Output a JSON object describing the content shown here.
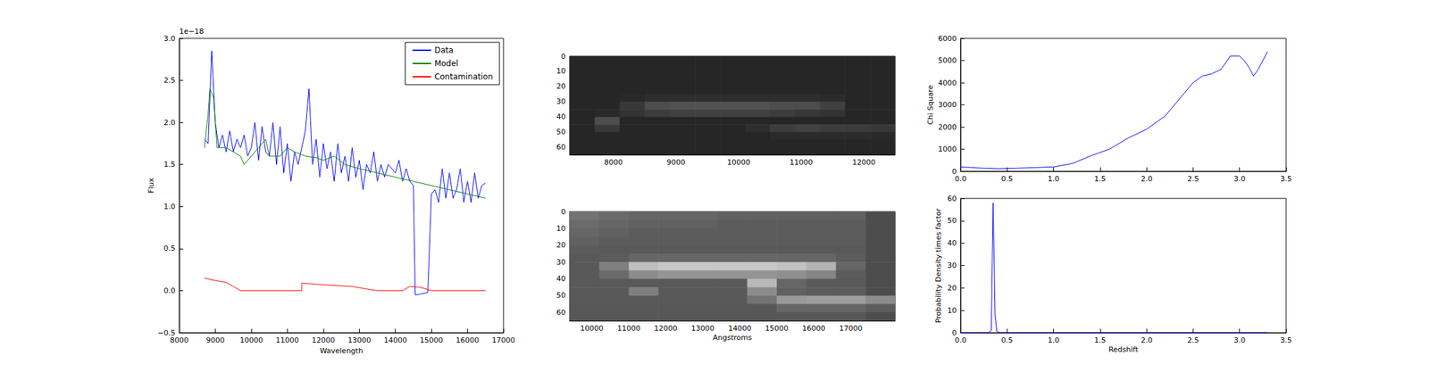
{
  "chart_data": [
    {
      "type": "line",
      "xlabel": "Wavelength",
      "ylabel": "Flux",
      "annotation": "1e−18",
      "xlim": [
        8000,
        17000
      ],
      "xticks": [
        8000,
        9000,
        10000,
        11000,
        12000,
        13000,
        14000,
        15000,
        16000,
        17000
      ],
      "ylim": [
        -0.5,
        3.0
      ],
      "yticks": [
        {
          "value": -0.5,
          "label": "−0.5"
        },
        {
          "value": 0,
          "label": "0.0"
        },
        {
          "value": 0.5,
          "label": "0.5"
        },
        {
          "value": 1,
          "label": "1.0"
        },
        {
          "value": 1.5,
          "label": "1.5"
        },
        {
          "value": 2,
          "label": "2.0"
        },
        {
          "value": 2.5,
          "label": "2.5"
        },
        {
          "value": 3,
          "label": "3.0"
        }
      ],
      "legend": "upper right",
      "series": [
        {
          "name": "Data",
          "color": "#0000ff",
          "x": [
            8700,
            8800,
            8900,
            9000,
            9100,
            9200,
            9300,
            9400,
            9500,
            9600,
            9700,
            9800,
            9900,
            10000,
            10100,
            10200,
            10300,
            10400,
            10500,
            10600,
            10700,
            10800,
            10900,
            11000,
            11100,
            11200,
            11300,
            11400,
            11500,
            11600,
            11700,
            11800,
            11900,
            12000,
            12100,
            12200,
            12300,
            12400,
            12500,
            12600,
            12700,
            12800,
            12900,
            13000,
            13100,
            13200,
            13300,
            13400,
            13500,
            13600,
            13700,
            13800,
            13900,
            14000,
            14100,
            14200,
            14300,
            14400,
            14500,
            14550,
            14700,
            14900,
            15000,
            15100,
            15200,
            15300,
            15400,
            15500,
            15600,
            15700,
            15800,
            15900,
            16000,
            16100,
            16200,
            16300,
            16400,
            16500
          ],
          "values": [
            1.8,
            1.75,
            2.85,
            2.0,
            1.7,
            1.85,
            1.65,
            1.9,
            1.65,
            1.8,
            1.7,
            1.85,
            1.6,
            1.7,
            2.0,
            1.55,
            1.95,
            1.65,
            1.6,
            2.0,
            1.5,
            1.95,
            1.4,
            1.75,
            1.3,
            1.65,
            1.5,
            1.7,
            1.9,
            2.4,
            1.5,
            1.8,
            1.35,
            1.75,
            1.45,
            1.65,
            1.3,
            1.75,
            1.4,
            1.6,
            1.3,
            1.7,
            1.35,
            1.55,
            1.2,
            1.5,
            1.4,
            1.65,
            1.3,
            1.5,
            1.35,
            1.5,
            1.45,
            1.4,
            1.55,
            1.3,
            1.45,
            1.3,
            1.25,
            -0.05,
            -0.04,
            -0.02,
            1.15,
            1.2,
            1.05,
            1.45,
            1.1,
            1.4,
            1.1,
            1.2,
            1.45,
            1.05,
            1.3,
            1.05,
            1.4,
            1.1,
            1.25,
            1.28
          ]
        },
        {
          "name": "Model",
          "color": "#008000",
          "x": [
            8700,
            8800,
            8850,
            8950,
            9050,
            9300,
            9500,
            9700,
            9800,
            10000,
            10200,
            10400,
            10500,
            10800,
            11000,
            11200,
            11500,
            11800,
            12000,
            12300,
            12600,
            13000,
            13500,
            14000,
            14500,
            15000,
            15500,
            16000,
            16500
          ],
          "values": [
            1.7,
            2.1,
            2.4,
            2.3,
            1.7,
            1.7,
            1.65,
            1.6,
            1.5,
            1.6,
            1.7,
            1.8,
            1.6,
            1.6,
            1.7,
            1.65,
            1.6,
            1.58,
            1.55,
            1.6,
            1.5,
            1.45,
            1.4,
            1.35,
            1.3,
            1.25,
            1.2,
            1.15,
            1.1
          ]
        },
        {
          "name": "Contamination",
          "color": "#ff0000",
          "x": [
            8700,
            9000,
            9300,
            9500,
            9700,
            11400,
            11400,
            12000,
            12800,
            13200,
            13500,
            14200,
            14400,
            14700,
            15000,
            16500
          ],
          "values": [
            0.15,
            0.12,
            0.1,
            0.05,
            0.0,
            0.0,
            0.09,
            0.07,
            0.05,
            0.02,
            0.0,
            0.0,
            0.05,
            0.04,
            0.0,
            0.0
          ]
        }
      ]
    },
    {
      "type": "image",
      "xlim": [
        7300,
        12500
      ],
      "xticks": [
        8000,
        9000,
        10000,
        11000,
        12000
      ],
      "ylim": [
        0,
        65
      ],
      "yticks": [
        0,
        10,
        20,
        30,
        40,
        50,
        60
      ],
      "x_edges": [
        7300,
        7700,
        8100,
        8500,
        8900,
        9300,
        9700,
        10100,
        10500,
        10900,
        11300,
        11700,
        12100,
        12500
      ],
      "y_edges": [
        0,
        5,
        10,
        15,
        20,
        25,
        30,
        35,
        40,
        45,
        50,
        55,
        60,
        65
      ],
      "cells": [
        [
          15,
          15,
          15,
          15,
          15,
          15,
          15,
          15,
          15,
          15,
          15,
          15,
          15
        ],
        [
          15,
          15,
          15,
          15,
          15,
          15,
          15,
          15,
          15,
          15,
          15,
          15,
          15
        ],
        [
          15,
          15,
          15,
          15,
          15,
          15,
          15,
          15,
          15,
          15,
          15,
          15,
          15
        ],
        [
          15,
          15,
          15,
          15,
          15,
          15,
          15,
          15,
          15,
          15,
          15,
          15,
          15
        ],
        [
          15,
          15,
          15,
          15,
          15,
          15,
          15,
          15,
          15,
          15,
          15,
          15,
          15
        ],
        [
          15,
          15,
          16,
          18,
          18,
          18,
          18,
          18,
          18,
          18,
          17,
          15,
          15
        ],
        [
          15,
          15,
          22,
          30,
          32,
          32,
          32,
          32,
          30,
          30,
          25,
          15,
          15
        ],
        [
          15,
          16,
          20,
          24,
          25,
          25,
          25,
          25,
          24,
          22,
          20,
          15,
          15
        ],
        [
          15,
          30,
          15,
          15,
          15,
          15,
          15,
          15,
          15,
          15,
          15,
          15,
          15
        ],
        [
          15,
          22,
          15,
          15,
          15,
          15,
          15,
          18,
          24,
          26,
          24,
          23,
          22
        ],
        [
          15,
          15,
          15,
          15,
          15,
          15,
          15,
          15,
          17,
          17,
          17,
          17,
          16
        ],
        [
          15,
          15,
          15,
          15,
          15,
          15,
          15,
          15,
          15,
          15,
          15,
          15,
          15
        ],
        [
          15,
          15,
          15,
          15,
          15,
          15,
          15,
          15,
          15,
          15,
          15,
          15,
          15
        ]
      ]
    },
    {
      "type": "image",
      "xlabel": "Angstroms",
      "xlim": [
        9400,
        18200
      ],
      "xticks": [
        10000,
        11000,
        12000,
        13000,
        14000,
        15000,
        16000,
        17000
      ],
      "ylim": [
        0,
        65
      ],
      "yticks": [
        0,
        10,
        20,
        30,
        40,
        50,
        60
      ],
      "x_edges": [
        9400,
        10200,
        11000,
        11800,
        12600,
        13400,
        14200,
        15000,
        15800,
        16600,
        17400,
        18200
      ],
      "y_edges": [
        0,
        5,
        10,
        15,
        20,
        25,
        30,
        35,
        40,
        45,
        50,
        55,
        60,
        65
      ],
      "cells": [
        [
          45,
          42,
          40,
          40,
          40,
          38,
          38,
          38,
          38,
          38,
          30
        ],
        [
          42,
          40,
          38,
          38,
          38,
          36,
          36,
          36,
          36,
          36,
          30
        ],
        [
          40,
          38,
          36,
          36,
          36,
          36,
          36,
          36,
          36,
          36,
          30
        ],
        [
          38,
          36,
          36,
          36,
          36,
          36,
          36,
          36,
          36,
          36,
          30
        ],
        [
          36,
          35,
          35,
          35,
          35,
          35,
          35,
          35,
          35,
          35,
          30
        ],
        [
          35,
          36,
          40,
          40,
          40,
          40,
          40,
          40,
          40,
          36,
          30
        ],
        [
          35,
          50,
          75,
          78,
          78,
          78,
          78,
          76,
          70,
          40,
          30
        ],
        [
          35,
          42,
          55,
          58,
          58,
          58,
          58,
          56,
          52,
          36,
          30
        ],
        [
          35,
          35,
          35,
          35,
          35,
          35,
          72,
          40,
          35,
          35,
          30
        ],
        [
          35,
          35,
          50,
          35,
          35,
          35,
          55,
          38,
          36,
          36,
          30
        ],
        [
          35,
          35,
          35,
          35,
          35,
          35,
          45,
          60,
          62,
          62,
          55
        ],
        [
          34,
          34,
          34,
          34,
          34,
          34,
          34,
          40,
          40,
          40,
          36
        ],
        [
          34,
          34,
          34,
          34,
          34,
          34,
          34,
          34,
          34,
          34,
          30
        ]
      ]
    },
    {
      "type": "line",
      "ylabel": "Chi Square",
      "xlim": [
        0,
        3.5
      ],
      "xticks": [
        {
          "value": 0,
          "label": "0.0"
        },
        {
          "value": 0.5,
          "label": "0.5"
        },
        {
          "value": 1,
          "label": "1.0"
        },
        {
          "value": 1.5,
          "label": "1.5"
        },
        {
          "value": 2,
          "label": "2.0"
        },
        {
          "value": 2.5,
          "label": "2.5"
        },
        {
          "value": 3,
          "label": "3.0"
        },
        {
          "value": 3.5,
          "label": "3.5"
        }
      ],
      "ylim": [
        0,
        6000
      ],
      "yticks": [
        0,
        1000,
        2000,
        3000,
        4000,
        5000,
        6000
      ],
      "series": [
        {
          "color": "#0000ff",
          "x": [
            0,
            0.2,
            0.4,
            0.6,
            0.8,
            1.0,
            1.2,
            1.4,
            1.6,
            1.8,
            2.0,
            2.2,
            2.4,
            2.5,
            2.6,
            2.7,
            2.8,
            2.9,
            3.0,
            3.05,
            3.1,
            3.15,
            3.2,
            3.3
          ],
          "values": [
            200,
            150,
            120,
            140,
            170,
            200,
            350,
            700,
            1000,
            1500,
            1900,
            2500,
            3500,
            4000,
            4300,
            4400,
            4600,
            5200,
            5200,
            5000,
            4700,
            4300,
            4600,
            5400
          ]
        }
      ]
    },
    {
      "type": "line",
      "xlabel": "Redshift",
      "ylabel": "Probability Density times factor",
      "xlim": [
        0,
        3.5
      ],
      "xticks": [
        {
          "value": 0,
          "label": "0.0"
        },
        {
          "value": 0.5,
          "label": "0.5"
        },
        {
          "value": 1,
          "label": "1.0"
        },
        {
          "value": 1.5,
          "label": "1.5"
        },
        {
          "value": 2,
          "label": "2.0"
        },
        {
          "value": 2.5,
          "label": "2.5"
        },
        {
          "value": 3,
          "label": "3.0"
        },
        {
          "value": 3.5,
          "label": "3.5"
        }
      ],
      "ylim": [
        0,
        60
      ],
      "yticks": [
        0,
        10,
        20,
        30,
        40,
        50,
        60
      ],
      "series": [
        {
          "color": "#0000ff",
          "x": [
            0,
            0.3,
            0.33,
            0.35,
            0.37,
            0.39,
            0.42,
            3.3
          ],
          "values": [
            0,
            0,
            1,
            58,
            8,
            0.5,
            0,
            0
          ]
        }
      ]
    }
  ]
}
